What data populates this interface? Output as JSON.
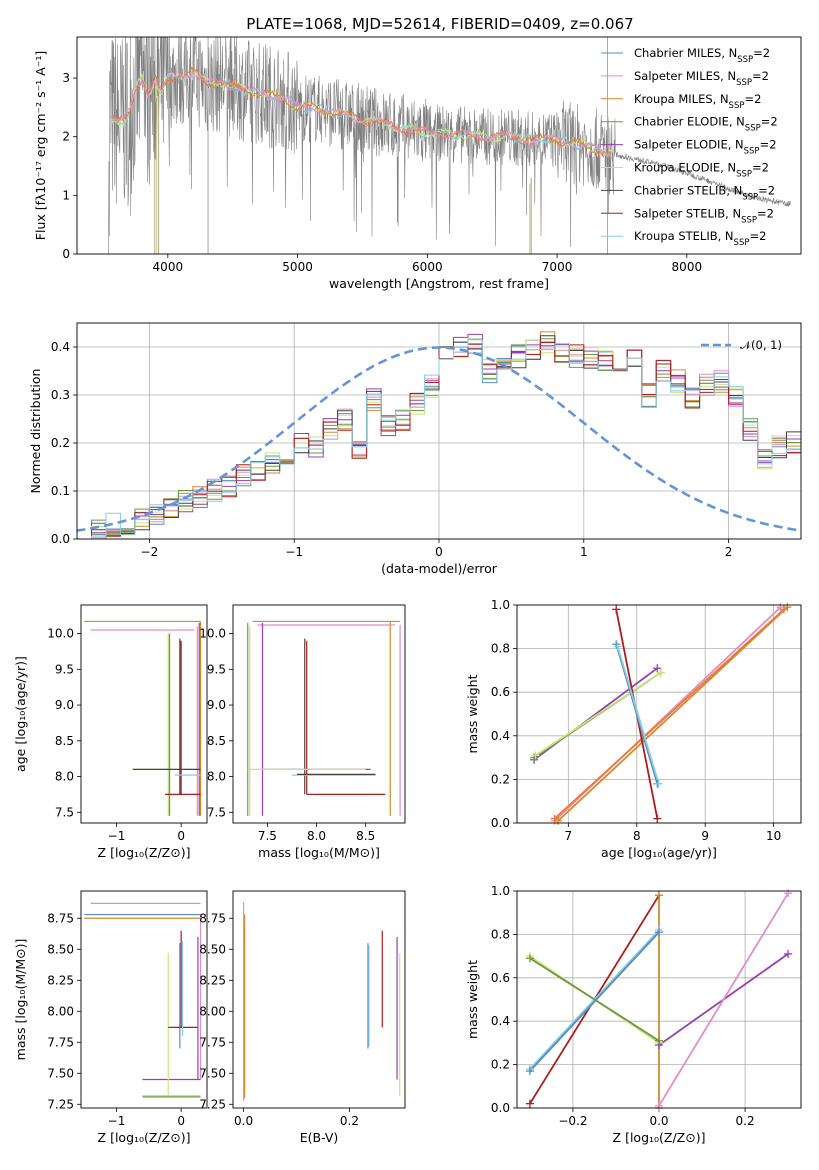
{
  "title": "PLATE=1068, MJD=52614, FIBERID=0409, z=0.067",
  "colors": {
    "chabrier_miles": "#5b8ac7",
    "salpeter_miles": "#e48dc5",
    "kroupa_miles": "#d48a2a",
    "chabrier_elodie": "#6a9a3e",
    "salpeter_elodie": "#9a3fb0",
    "kroupa_elodie": "#c9e57a",
    "chabrier_stelib": "#444444",
    "salpeter_stelib": "#b01c1c",
    "kroupa_stelib": "#84cfe0",
    "data": "#808080",
    "orange_fit": "#f07838",
    "gauss": "#6495dc"
  },
  "chart_data": [
    {
      "type": "line",
      "id": "spectrum",
      "xlabel": "wavelength [Angstrom, rest frame]",
      "ylabel": "Flux [fλ10⁻¹⁷ erg cm⁻² s⁻¹ A⁻¹]",
      "xlim": [
        3300,
        8880
      ],
      "ylim": [
        0,
        3.7
      ],
      "xticks": [
        4000,
        5000,
        6000,
        7000,
        8000
      ],
      "yticks": [
        0,
        1,
        2,
        3
      ],
      "legend_position": "right",
      "model_points": [
        [
          3550,
          2.3
        ],
        [
          3650,
          2.25
        ],
        [
          3700,
          2.4
        ],
        [
          3750,
          2.8
        ],
        [
          3800,
          3.0
        ],
        [
          3850,
          2.7
        ],
        [
          3900,
          3.0
        ],
        [
          3950,
          2.75
        ],
        [
          4000,
          3.0
        ],
        [
          4100,
          3.05
        ],
        [
          4200,
          3.1
        ],
        [
          4300,
          2.9
        ],
        [
          4400,
          2.95
        ],
        [
          4500,
          2.85
        ],
        [
          4600,
          2.8
        ],
        [
          4700,
          2.75
        ],
        [
          4800,
          2.7
        ],
        [
          4900,
          2.65
        ],
        [
          5000,
          2.5
        ],
        [
          5100,
          2.5
        ],
        [
          5200,
          2.45
        ],
        [
          5300,
          2.4
        ],
        [
          5400,
          2.35
        ],
        [
          5500,
          2.3
        ],
        [
          5600,
          2.25
        ],
        [
          5700,
          2.2
        ],
        [
          5800,
          2.15
        ],
        [
          5900,
          2.1
        ],
        [
          6000,
          2.07
        ],
        [
          6200,
          2.05
        ],
        [
          6400,
          2.0
        ],
        [
          6600,
          2.0
        ],
        [
          6800,
          1.95
        ],
        [
          7000,
          1.95
        ],
        [
          7200,
          1.85
        ],
        [
          7400,
          1.72
        ],
        [
          7600,
          1.62
        ],
        [
          7800,
          1.52
        ],
        [
          8000,
          1.38
        ],
        [
          8200,
          1.22
        ],
        [
          8400,
          1.05
        ],
        [
          8600,
          0.92
        ],
        [
          8800,
          0.85
        ]
      ],
      "series": [
        {
          "name": "Chabrier MILES, N",
          "sub": "SSP",
          "suffix": "=2"
        },
        {
          "name": "Salpeter MILES, N",
          "sub": "SSP",
          "suffix": "=2"
        },
        {
          "name": "Kroupa MILES, N",
          "sub": "SSP",
          "suffix": "=2"
        },
        {
          "name": "Chabrier ELODIE, N",
          "sub": "SSP",
          "suffix": "=2"
        },
        {
          "name": "Salpeter ELODIE, N",
          "sub": "SSP",
          "suffix": "=2"
        },
        {
          "name": "Kroupa ELODIE, N",
          "sub": "SSP",
          "suffix": "=2"
        },
        {
          "name": "Chabrier STELIB, N",
          "sub": "SSP",
          "suffix": "=2"
        },
        {
          "name": "Salpeter STELIB, N",
          "sub": "SSP",
          "suffix": "=2"
        },
        {
          "name": "Kroupa STELIB, N",
          "sub": "SSP",
          "suffix": "=2"
        }
      ]
    },
    {
      "type": "histogram",
      "id": "residuals",
      "xlabel": "(data-model)/error",
      "ylabel": "Normed distribution",
      "xlim": [
        -2.5,
        2.5
      ],
      "ylim": [
        0,
        0.45
      ],
      "xticks": [
        -2,
        -1,
        0,
        1,
        2
      ],
      "yticks": [
        0.0,
        0.1,
        0.2,
        0.3,
        0.4
      ],
      "bin_width": 0.1,
      "bins_start": -2.5,
      "grid": true,
      "legend": "𝒩(0, 1)",
      "legend_position": "top-right",
      "base": [
        0.02,
        0.02,
        0.03,
        0.03,
        0.04,
        0.05,
        0.06,
        0.08,
        0.09,
        0.1,
        0.11,
        0.13,
        0.14,
        0.16,
        0.17,
        0.2,
        0.19,
        0.23,
        0.25,
        0.19,
        0.29,
        0.24,
        0.25,
        0.28,
        0.32,
        0.39,
        0.4,
        0.41,
        0.35,
        0.36,
        0.38,
        0.39,
        0.41,
        0.39,
        0.38,
        0.38,
        0.37,
        0.36,
        0.38,
        0.3,
        0.35,
        0.33,
        0.29,
        0.32,
        0.33,
        0.3,
        0.23,
        0.17,
        0.19,
        0.2,
        0.15,
        0.17,
        0.14,
        0.1,
        0.1,
        0.09,
        0.07,
        0.06,
        0.06,
        0.05
      ]
    },
    {
      "type": "errorbar",
      "id": "age_vs_Z",
      "xlabel": "Z [log₁₀(Z/Z⊙)]",
      "ylabel": "age  [log₁₀(age/yr)]",
      "xlim": [
        -1.55,
        0.4
      ],
      "ylim": [
        7.35,
        10.4
      ],
      "xticks": [
        -1,
        0
      ],
      "yticks": [
        7.5,
        8.0,
        8.5,
        9.0,
        9.5,
        10.0
      ]
    },
    {
      "type": "errorbar",
      "id": "age_vs_mass",
      "xlabel": "mass [log₁₀(M/M⊙)]",
      "xlim": [
        7.15,
        8.9
      ],
      "ylim": [
        7.35,
        10.4
      ],
      "xticks": [
        7.5,
        8.0,
        8.5
      ],
      "yticks": [
        7.5,
        8.0,
        8.5,
        9.0,
        9.5,
        10.0
      ]
    },
    {
      "type": "line",
      "id": "weight_vs_age",
      "xlabel": "age  [log₁₀(age/yr)]",
      "ylabel": "mass weight",
      "xlim": [
        6.25,
        10.4
      ],
      "ylim": [
        0,
        1
      ],
      "xticks": [
        7,
        8,
        9,
        10
      ],
      "yticks": [
        0.0,
        0.2,
        0.4,
        0.6,
        0.8,
        1.0
      ],
      "grid": true,
      "series": [
        {
          "color": "salpeter_miles",
          "x": [
            6.8,
            10.1
          ],
          "y": [
            0.01,
            0.99
          ]
        },
        {
          "color": "kroupa_miles",
          "x": [
            6.85,
            10.2
          ],
          "y": [
            0.01,
            0.99
          ]
        },
        {
          "color": "orange_fit",
          "x": [
            6.8,
            10.15
          ],
          "y": [
            0.02,
            0.98
          ]
        },
        {
          "color": "salpeter_elodie",
          "x": [
            6.5,
            8.3
          ],
          "y": [
            0.29,
            0.71
          ]
        },
        {
          "color": "chabrier_elodie",
          "x": [
            6.5,
            8.35
          ],
          "y": [
            0.3,
            0.69
          ]
        },
        {
          "color": "kroupa_elodie",
          "x": [
            6.52,
            8.35
          ],
          "y": [
            0.31,
            0.69
          ]
        },
        {
          "color": "salpeter_stelib",
          "x": [
            7.7,
            8.3
          ],
          "y": [
            0.98,
            0.02
          ]
        },
        {
          "color": "chabrier_miles",
          "x": [
            7.7,
            8.3
          ],
          "y": [
            0.82,
            0.18
          ]
        },
        {
          "color": "kroupa_stelib",
          "x": [
            7.72,
            8.32
          ],
          "y": [
            0.81,
            0.18
          ]
        }
      ]
    },
    {
      "type": "errorbar",
      "id": "mass_vs_Z",
      "xlabel": "Z [log₁₀(Z/Z⊙)]",
      "ylabel": "mass [log₁₀(M/M⊙)]",
      "xlim": [
        -1.55,
        0.4
      ],
      "ylim": [
        7.22,
        8.97
      ],
      "xticks": [
        -1,
        0
      ],
      "yticks": [
        7.25,
        7.5,
        7.75,
        8.0,
        8.25,
        8.5,
        8.75
      ]
    },
    {
      "type": "errorbar",
      "id": "mass_vs_ebv",
      "xlabel": "E(B-V)",
      "xlim": [
        -0.02,
        0.305
      ],
      "ylim": [
        7.22,
        8.97
      ],
      "xticks": [
        0.0,
        0.2
      ],
      "yticks": [
        7.25,
        7.5,
        7.75,
        8.0,
        8.25,
        8.5,
        8.75
      ]
    },
    {
      "type": "line",
      "id": "weight_vs_Z",
      "xlabel": "Z [log₁₀(Z/Z⊙)]",
      "ylabel": "mass weight",
      "xlim": [
        -0.33,
        0.33
      ],
      "ylim": [
        0,
        1
      ],
      "xticks": [
        -0.2,
        0.0,
        0.2
      ],
      "yticks": [
        0.0,
        0.2,
        0.4,
        0.6,
        0.8,
        1.0
      ],
      "grid": true,
      "series": [
        {
          "color": "salpeter_stelib",
          "x": [
            -0.3,
            0.0
          ],
          "y": [
            0.02,
            0.98
          ]
        },
        {
          "color": "kroupa_stelib",
          "x": [
            -0.3,
            0.0
          ],
          "y": [
            0.18,
            0.82
          ]
        },
        {
          "color": "chabrier_miles",
          "x": [
            -0.3,
            0.0
          ],
          "y": [
            0.17,
            0.81
          ]
        },
        {
          "color": "kroupa_elodie",
          "x": [
            -0.3,
            0.0
          ],
          "y": [
            0.7,
            0.3
          ]
        },
        {
          "color": "chabrier_elodie",
          "x": [
            -0.3,
            0.0
          ],
          "y": [
            0.69,
            0.31
          ]
        },
        {
          "color": "kroupa_miles",
          "x": [
            0.0,
            0.0
          ],
          "y": [
            0.0,
            0.98
          ]
        },
        {
          "color": "salpeter_elodie",
          "x": [
            0.0,
            0.3
          ],
          "y": [
            0.29,
            0.71
          ]
        },
        {
          "color": "salpeter_miles",
          "x": [
            0.0,
            0.3
          ],
          "y": [
            0.01,
            0.99
          ]
        }
      ]
    }
  ]
}
